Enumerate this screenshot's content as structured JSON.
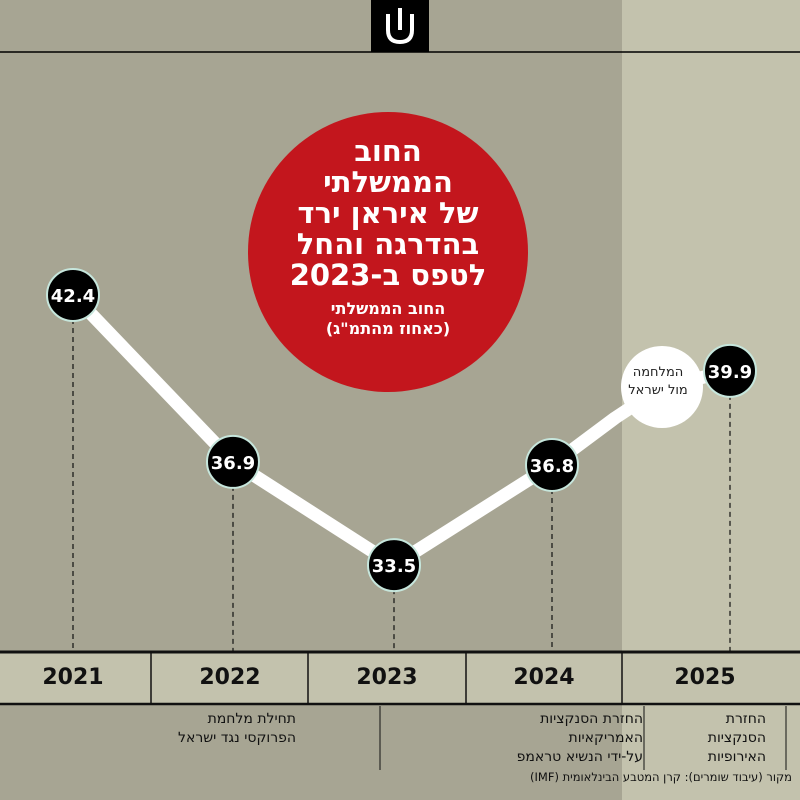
{
  "colors": {
    "background_past": "#a7a593",
    "background_2025": "#c3c2ad",
    "headline_circle": "#c3161d",
    "line": "#ffffff",
    "marker_fill": "#000000",
    "marker_ring": "#c6e6dc"
  },
  "headline": {
    "title": "החוב\nהממשלתי\nשל איראן ירד\nבהדרגה והחל\nלטפס ב-2023",
    "subtitle": "החוב הממשלתי\n(כאחוז מהתמ\"ג)"
  },
  "logo": {
    "icon": "newspaper-logo-icon"
  },
  "chart_data": {
    "type": "line",
    "x": [
      "2021",
      "2022",
      "2023",
      "2024",
      "2025"
    ],
    "series": [
      {
        "values": [
          42.4,
          36.9,
          33.5,
          36.8,
          39.9
        ]
      }
    ],
    "data_labels": [
      "42.4",
      "36.9",
      "33.5",
      "36.8",
      "39.9"
    ],
    "annotations": [
      {
        "text": "המלחמה\nמול ישראל",
        "between": [
          "2024",
          "2025"
        ]
      }
    ],
    "event_notes": [
      {
        "year": "2022",
        "text": "תחילת מלחמת\nהפרוקסי נגד ישראל"
      },
      {
        "year": "2024",
        "text": "החזרת הסנקציות\nהאמריקאיות\nעל-ידי הנשיא טראמפ"
      },
      {
        "year": "2025",
        "text": "החזרת\nהסנקציות\nהאירופיות"
      }
    ],
    "grid": false,
    "legend": "none"
  },
  "source": "מקור (עיבוד שומרים): קרן המטבע הבינלאומית (IMF)"
}
